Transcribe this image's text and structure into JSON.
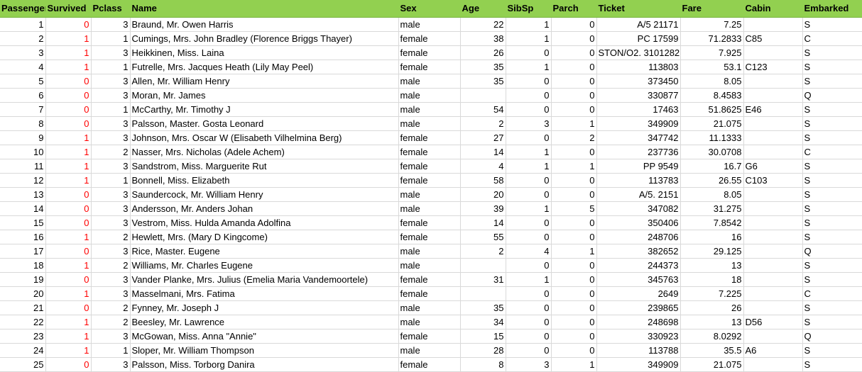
{
  "columns": [
    "PassengerId",
    "Survived",
    "Pclass",
    "Name",
    "Sex",
    "Age",
    "SibSp",
    "Parch",
    "Ticket",
    "Fare",
    "Cabin",
    "Embarked"
  ],
  "rows": [
    [
      "1",
      "0",
      "3",
      "Braund, Mr. Owen Harris",
      "male",
      "22",
      "1",
      "0",
      "A/5 21171",
      "7.25",
      "",
      "S"
    ],
    [
      "2",
      "1",
      "1",
      "Cumings, Mrs. John Bradley (Florence Briggs Thayer)",
      "female",
      "38",
      "1",
      "0",
      "PC 17599",
      "71.2833",
      "C85",
      "C"
    ],
    [
      "3",
      "1",
      "3",
      "Heikkinen, Miss. Laina",
      "female",
      "26",
      "0",
      "0",
      "STON/O2. 3101282",
      "7.925",
      "",
      "S"
    ],
    [
      "4",
      "1",
      "1",
      "Futrelle, Mrs. Jacques Heath (Lily May Peel)",
      "female",
      "35",
      "1",
      "0",
      "113803",
      "53.1",
      "C123",
      "S"
    ],
    [
      "5",
      "0",
      "3",
      "Allen, Mr. William Henry",
      "male",
      "35",
      "0",
      "0",
      "373450",
      "8.05",
      "",
      "S"
    ],
    [
      "6",
      "0",
      "3",
      "Moran, Mr. James",
      "male",
      "",
      "0",
      "0",
      "330877",
      "8.4583",
      "",
      "Q"
    ],
    [
      "7",
      "0",
      "1",
      "McCarthy, Mr. Timothy J",
      "male",
      "54",
      "0",
      "0",
      "17463",
      "51.8625",
      "E46",
      "S"
    ],
    [
      "8",
      "0",
      "3",
      "Palsson, Master. Gosta Leonard",
      "male",
      "2",
      "3",
      "1",
      "349909",
      "21.075",
      "",
      "S"
    ],
    [
      "9",
      "1",
      "3",
      "Johnson, Mrs. Oscar W (Elisabeth Vilhelmina Berg)",
      "female",
      "27",
      "0",
      "2",
      "347742",
      "11.1333",
      "",
      "S"
    ],
    [
      "10",
      "1",
      "2",
      "Nasser, Mrs. Nicholas (Adele Achem)",
      "female",
      "14",
      "1",
      "0",
      "237736",
      "30.0708",
      "",
      "C"
    ],
    [
      "11",
      "1",
      "3",
      "Sandstrom, Miss. Marguerite Rut",
      "female",
      "4",
      "1",
      "1",
      "PP 9549",
      "16.7",
      "G6",
      "S"
    ],
    [
      "12",
      "1",
      "1",
      "Bonnell, Miss. Elizabeth",
      "female",
      "58",
      "0",
      "0",
      "113783",
      "26.55",
      "C103",
      "S"
    ],
    [
      "13",
      "0",
      "3",
      "Saundercock, Mr. William Henry",
      "male",
      "20",
      "0",
      "0",
      "A/5. 2151",
      "8.05",
      "",
      "S"
    ],
    [
      "14",
      "0",
      "3",
      "Andersson, Mr. Anders Johan",
      "male",
      "39",
      "1",
      "5",
      "347082",
      "31.275",
      "",
      "S"
    ],
    [
      "15",
      "0",
      "3",
      "Vestrom, Miss. Hulda Amanda Adolfina",
      "female",
      "14",
      "0",
      "0",
      "350406",
      "7.8542",
      "",
      "S"
    ],
    [
      "16",
      "1",
      "2",
      "Hewlett, Mrs. (Mary D Kingcome)",
      "female",
      "55",
      "0",
      "0",
      "248706",
      "16",
      "",
      "S"
    ],
    [
      "17",
      "0",
      "3",
      "Rice, Master. Eugene",
      "male",
      "2",
      "4",
      "1",
      "382652",
      "29.125",
      "",
      "Q"
    ],
    [
      "18",
      "1",
      "2",
      "Williams, Mr. Charles Eugene",
      "male",
      "",
      "0",
      "0",
      "244373",
      "13",
      "",
      "S"
    ],
    [
      "19",
      "0",
      "3",
      "Vander Planke, Mrs. Julius (Emelia Maria Vandemoortele)",
      "female",
      "31",
      "1",
      "0",
      "345763",
      "18",
      "",
      "S"
    ],
    [
      "20",
      "1",
      "3",
      "Masselmani, Mrs. Fatima",
      "female",
      "",
      "0",
      "0",
      "2649",
      "7.225",
      "",
      "C"
    ],
    [
      "21",
      "0",
      "2",
      "Fynney, Mr. Joseph J",
      "male",
      "35",
      "0",
      "0",
      "239865",
      "26",
      "",
      "S"
    ],
    [
      "22",
      "1",
      "2",
      "Beesley, Mr. Lawrence",
      "male",
      "34",
      "0",
      "0",
      "248698",
      "13",
      "D56",
      "S"
    ],
    [
      "23",
      "1",
      "3",
      "McGowan, Miss. Anna \"Annie\"",
      "female",
      "15",
      "0",
      "0",
      "330923",
      "8.0292",
      "",
      "Q"
    ],
    [
      "24",
      "1",
      "1",
      "Sloper, Mr. William Thompson",
      "male",
      "28",
      "0",
      "0",
      "113788",
      "35.5",
      "A6",
      "S"
    ],
    [
      "25",
      "0",
      "3",
      "Palsson, Miss. Torborg Danira",
      "female",
      "8",
      "3",
      "1",
      "349909",
      "21.075",
      "",
      "S"
    ]
  ],
  "colors": {
    "header_bg": "#92d050",
    "survived_text": "#ff0000",
    "gridline": "#d9d9d9"
  }
}
